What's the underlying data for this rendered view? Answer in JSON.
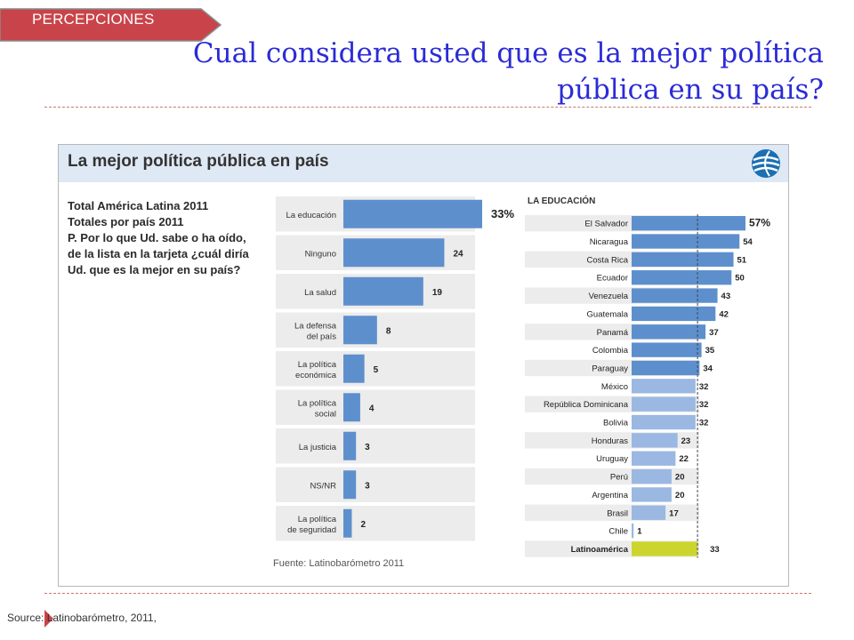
{
  "slide": {
    "tag_label": "PERCEPCIONES",
    "title_line1": "Cual considera usted que es la mejor política",
    "title_line2": "pública en su país?",
    "source": "Source: Latinobarómetro, 2011,"
  },
  "colors": {
    "tag": "#c9444a",
    "title": "#2b2bd6",
    "bar_left": "#5e8fcd",
    "bar_right_light": "#9ab8e2",
    "bar_right_dark": "#5e8fcd",
    "highlight": "#ccd52e",
    "row_band": "#ececec"
  },
  "figure": {
    "title": "La mejor política pública en país",
    "question_lines": [
      "Total América Latina 2011",
      "Totales por país 2011",
      "P. Por lo que Ud. sabe o ha oído,",
      "de la lista en la tarjeta ¿cuál diría",
      "Ud. que es la mejor en su país?"
    ],
    "footnote": "Fuente: Latinobarómetro 2011",
    "logo_icon": "latinobarometro-logo-icon"
  },
  "chart_data": [
    {
      "type": "bar",
      "orientation": "horizontal",
      "title": "Total América Latina 2011",
      "categories": [
        [
          "La educación"
        ],
        [
          "Ninguno"
        ],
        [
          "La salud"
        ],
        [
          "La defensa",
          "del país"
        ],
        [
          "La política",
          "económica"
        ],
        [
          "La política",
          "social"
        ],
        [
          "La justicia"
        ],
        [
          "NS/NR"
        ],
        [
          "La política",
          "de seguridad"
        ]
      ],
      "values": [
        33,
        24,
        19,
        8,
        5,
        4,
        3,
        3,
        2
      ],
      "value_labels": [
        "33",
        "24",
        "19",
        "8",
        "5",
        "4",
        "3",
        "3",
        "2"
      ],
      "unit": "%",
      "xlim": [
        0,
        40
      ]
    },
    {
      "type": "bar",
      "orientation": "horizontal",
      "title": "LA EDUCACIÓN",
      "categories": [
        "El Salvador",
        "Nicaragua",
        "Costa Rica",
        "Ecuador",
        "Venezuela",
        "Guatemala",
        "Panamá",
        "Colombia",
        "Paraguay",
        "México",
        "República Dominicana",
        "Bolivia",
        "Honduras",
        "Uruguay",
        "Perú",
        "Argentina",
        "Brasil",
        "Chile",
        "Latinoamérica"
      ],
      "values": [
        57,
        54,
        51,
        50,
        43,
        42,
        37,
        35,
        34,
        32,
        32,
        32,
        23,
        22,
        20,
        20,
        17,
        1,
        33
      ],
      "value_labels": [
        "57",
        "54",
        "51",
        "50",
        "43",
        "42",
        "37",
        "35",
        "34",
        "32",
        "32",
        "32",
        "23",
        "22",
        "20",
        "20",
        "17",
        "1",
        "33"
      ],
      "unit": "%",
      "reference_value": 33,
      "reference_label": "Latinoamérica",
      "xlim": [
        0,
        60
      ]
    }
  ]
}
